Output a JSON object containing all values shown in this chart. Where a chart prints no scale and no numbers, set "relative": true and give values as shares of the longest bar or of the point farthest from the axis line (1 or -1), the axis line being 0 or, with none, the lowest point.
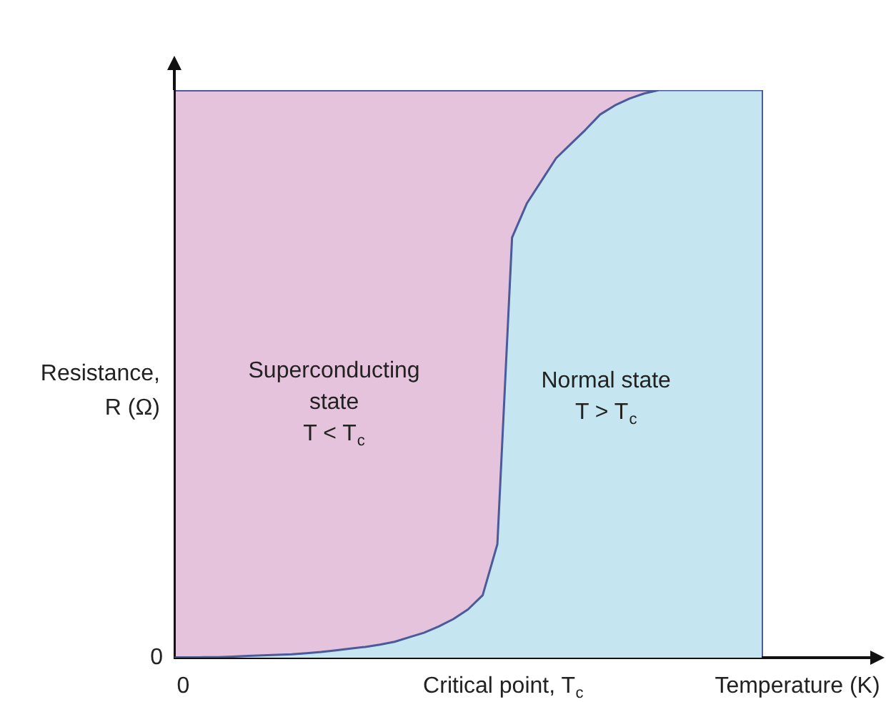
{
  "chart_data": {
    "type": "area",
    "relative": true,
    "xlabel": "Temperature (K)",
    "ylabel": "Resistance,\nR (Ω)",
    "legend": false,
    "marker": "none",
    "categories": [
      null,
      null,
      null,
      null,
      null,
      null,
      null,
      null,
      null,
      null,
      null,
      null,
      null,
      null,
      null,
      null,
      null,
      null,
      null,
      null,
      null,
      null,
      null,
      null,
      null,
      null,
      null,
      null,
      null,
      null,
      null,
      null,
      null,
      null,
      null,
      null,
      null,
      null,
      null,
      null,
      null
    ],
    "series": [
      {
        "color": "#c5e6f0",
        "values": [
          0,
          0,
          0.001,
          0.001,
          0.002,
          0.003,
          0.004,
          0.005,
          0.006,
          0.008,
          0.01,
          0.013,
          0.016,
          0.019,
          0.023,
          0.028,
          0.036,
          0.044,
          0.055,
          0.068,
          0.085,
          0.11,
          0.2,
          0.74,
          0.8,
          0.84,
          0.88,
          0.905,
          0.93,
          0.957,
          0.973,
          0.985,
          0.994,
          1,
          1,
          1,
          1,
          1,
          1,
          1,
          1
        ]
      }
    ],
    "annotations": [
      "Superconducting\nstate\nT < T$_{c}$",
      "Normal state\nT > T$_{c}$",
      "Critical point, T$_{c}$",
      "0",
      "0"
    ]
  }
}
